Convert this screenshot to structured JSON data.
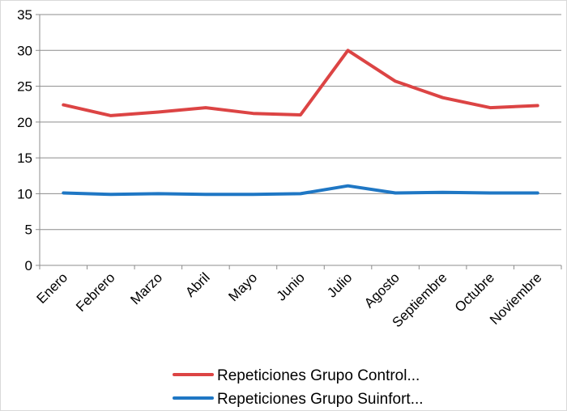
{
  "chart_data": {
    "type": "line",
    "categories": [
      "Enero",
      "Febrero",
      "Marzo",
      "Abril",
      "Mayo",
      "Junio",
      "Julio",
      "Agosto",
      "Septiembre",
      "Octubre",
      "Noviembre"
    ],
    "series": [
      {
        "name": "Repeticiones Grupo Control...",
        "color": "#dc4444",
        "values": [
          22.4,
          20.9,
          21.4,
          22.0,
          21.2,
          21.0,
          30.0,
          25.7,
          23.4,
          22.0,
          22.3
        ]
      },
      {
        "name": "Repeticiones Grupo Suinfort...",
        "color": "#1f77c4",
        "values": [
          10.1,
          9.9,
          10.0,
          9.9,
          9.9,
          10.0,
          11.1,
          10.1,
          10.2,
          10.1,
          10.1
        ]
      }
    ],
    "ylim": [
      0,
      35
    ],
    "yticks": [
      0,
      5,
      10,
      15,
      20,
      25,
      30,
      35
    ],
    "grid": true,
    "legend": "bottom"
  }
}
